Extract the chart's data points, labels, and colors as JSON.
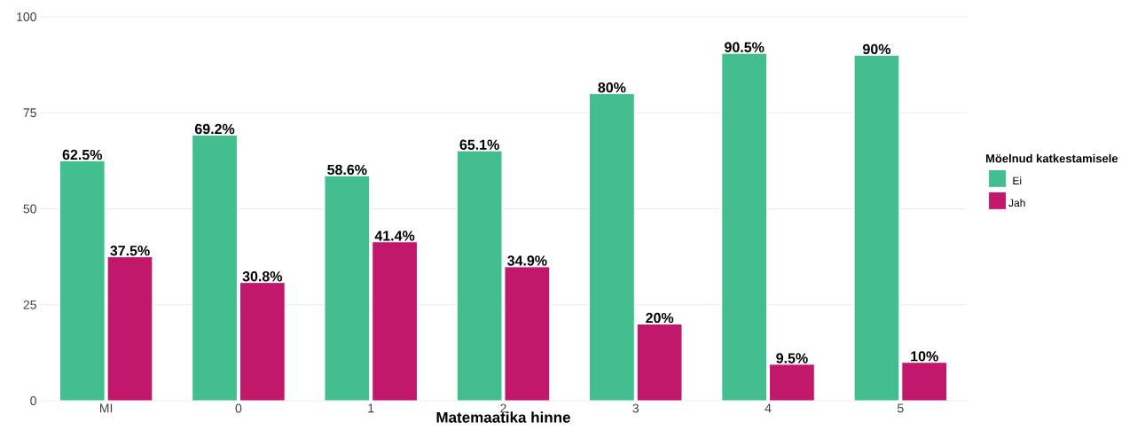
{
  "chart_data": {
    "type": "bar",
    "xlabel": "Matemaatika hinne",
    "legend_title": "Möelnud katkestamisele",
    "categories": [
      "MI",
      "0",
      "1",
      "2",
      "3",
      "4",
      "5"
    ],
    "series": [
      {
        "name": "Ei",
        "color": "#43bf8f",
        "values": [
          62.5,
          69.2,
          58.6,
          65.1,
          80,
          90.5,
          90
        ],
        "value_labels": [
          "62.5%",
          "69.2%",
          "58.6%",
          "65.1%",
          "80%",
          "90.5%",
          "90%"
        ]
      },
      {
        "name": "Jah",
        "color": "#c2186b",
        "values": [
          37.5,
          30.8,
          41.4,
          34.9,
          20,
          9.5,
          10
        ],
        "value_labels": [
          "37.5%",
          "30.8%",
          "41.4%",
          "34.9%",
          "20%",
          "9.5%",
          "10%"
        ]
      }
    ],
    "ylim": [
      0,
      100
    ],
    "yticks": [
      0,
      25,
      50,
      75,
      100
    ],
    "grid": "y",
    "legend": "right"
  }
}
